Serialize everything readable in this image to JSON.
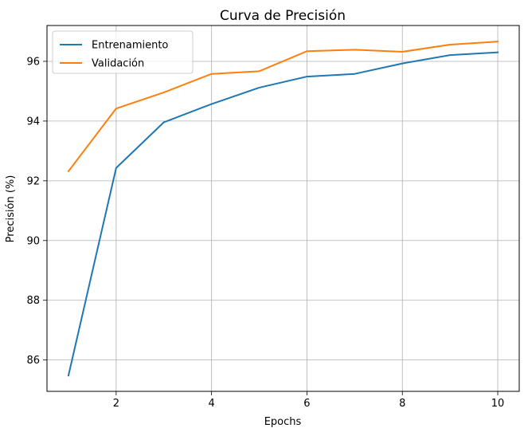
{
  "chart_data": {
    "type": "line",
    "title": "Curva de Precisión",
    "xlabel": "Epochs",
    "ylabel": "Precisión (%)",
    "x": [
      1,
      2,
      3,
      4,
      5,
      6,
      7,
      8,
      9,
      10
    ],
    "xlim": [
      0.55,
      10.45
    ],
    "ylim": [
      84.95,
      97.2
    ],
    "xticks": [
      2,
      4,
      6,
      8,
      10
    ],
    "yticks": [
      86,
      88,
      90,
      92,
      94,
      96
    ],
    "grid": true,
    "legend_position": "top-left",
    "series": [
      {
        "name": "Entrenamiento",
        "color": "#1f77b4",
        "values": [
          85.48,
          92.43,
          93.96,
          94.57,
          95.12,
          95.49,
          95.58,
          95.93,
          96.21,
          96.3
        ]
      },
      {
        "name": "Validación",
        "color": "#ff7f0e",
        "values": [
          92.32,
          94.42,
          94.96,
          95.58,
          95.67,
          96.34,
          96.39,
          96.32,
          96.56,
          96.66
        ]
      }
    ]
  }
}
